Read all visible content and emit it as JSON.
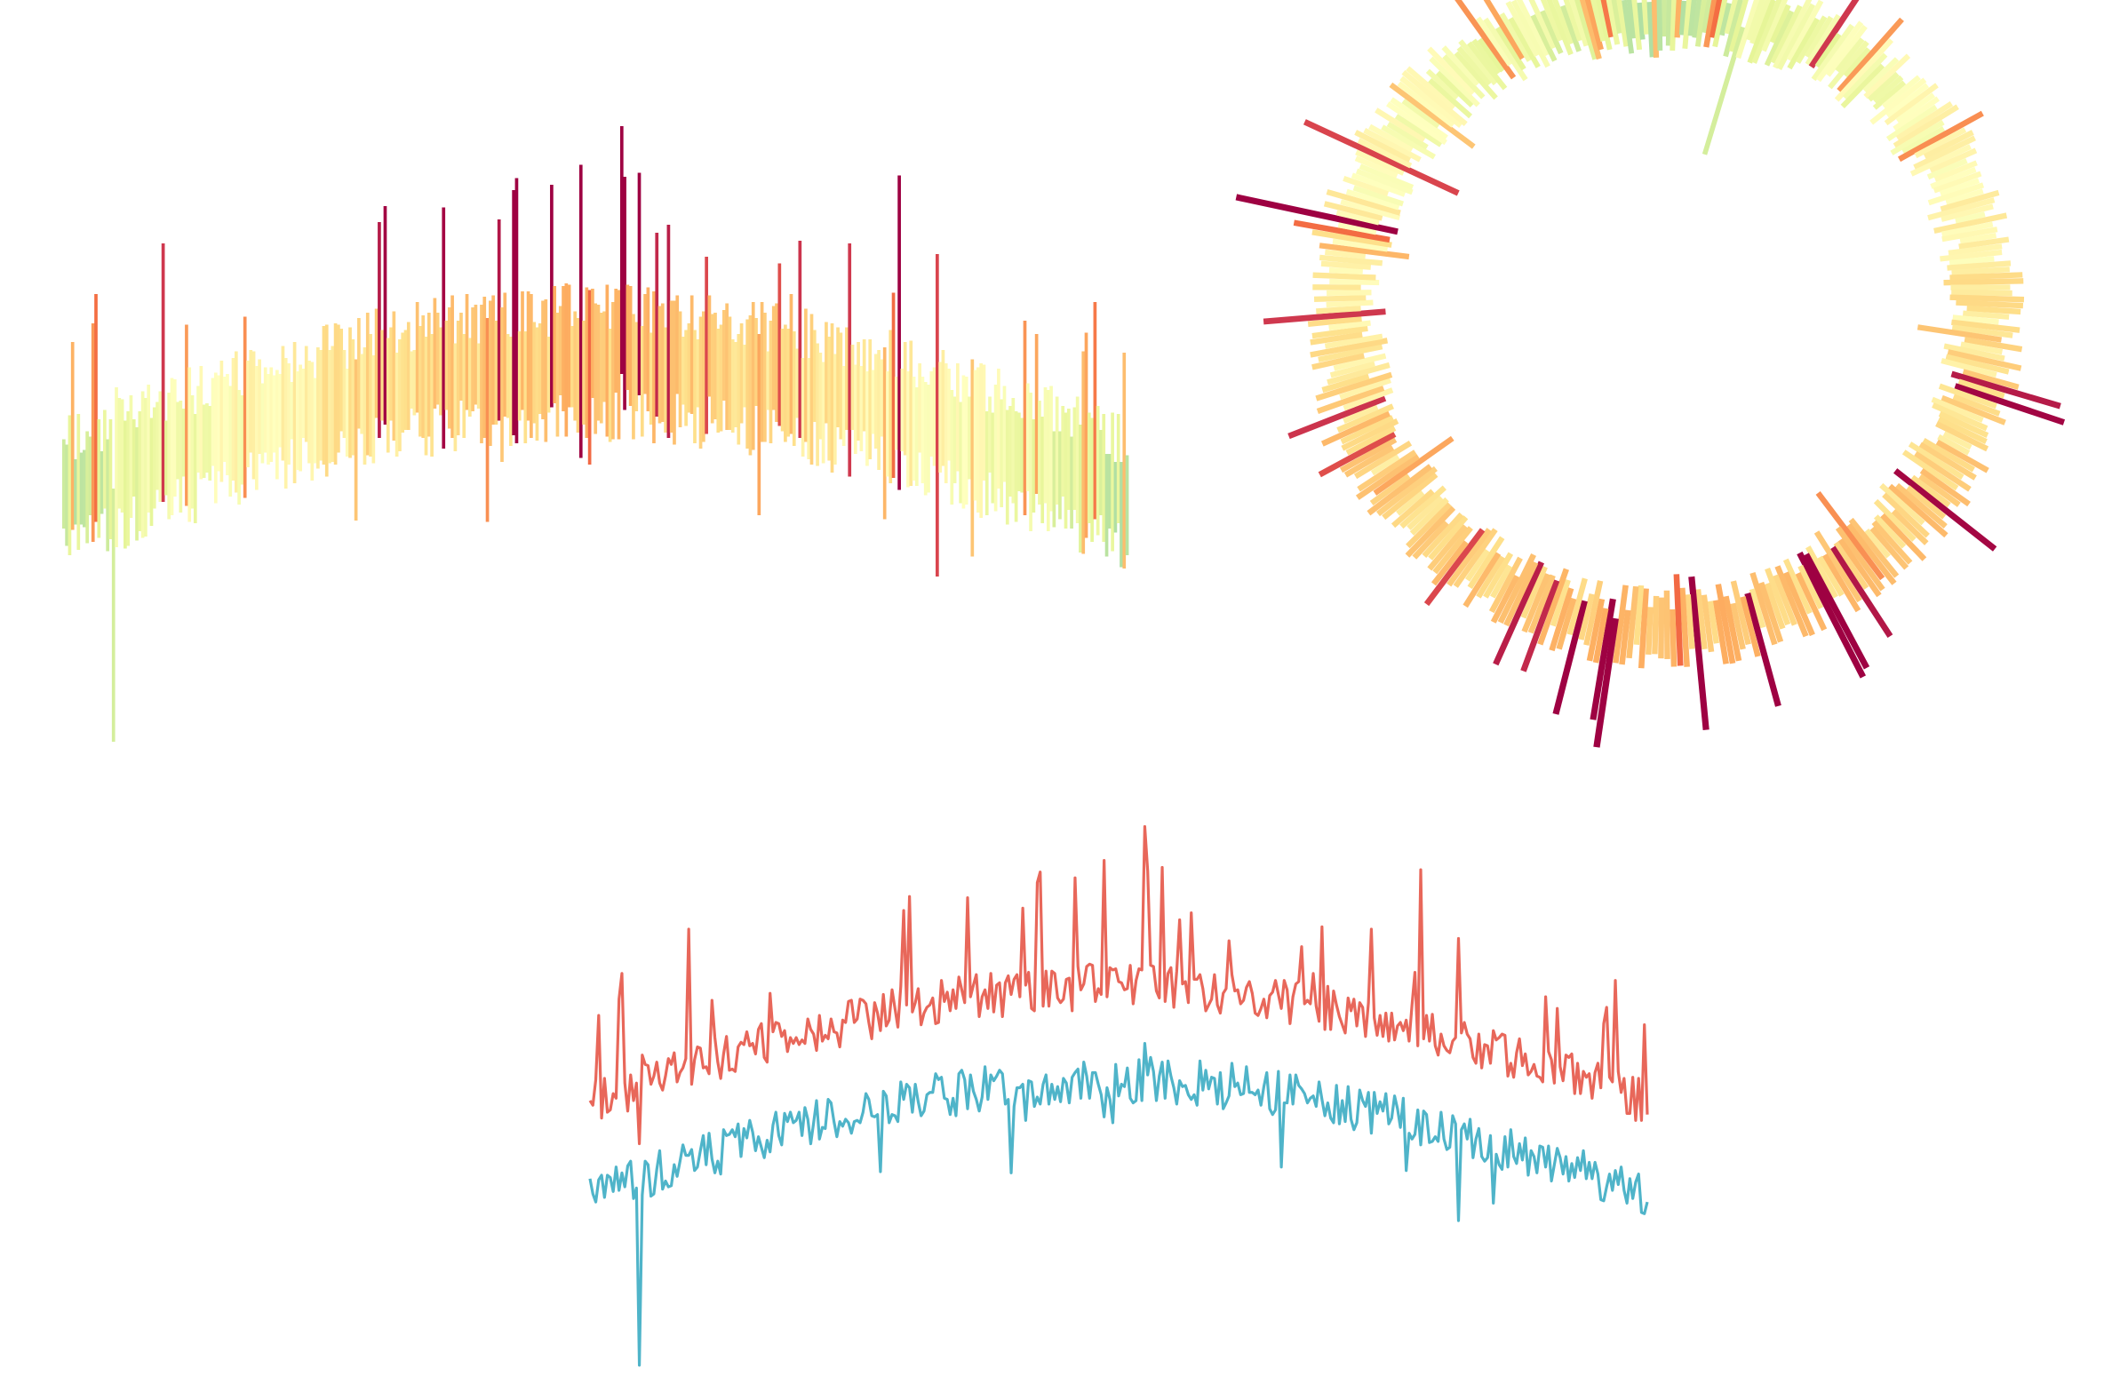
{
  "chart_data": [
    {
      "type": "bar",
      "variant": "floating-range",
      "color_scale": "spectral",
      "grid": false,
      "axes": false,
      "series": [
        {
          "name": "",
          "values": []
        },
        {
          "name": "",
          "values": []
        }
      ]
    },
    {
      "type": "bar",
      "variant": "radial-floating-range",
      "color_scale": "spectral",
      "grid": false,
      "axes": false,
      "series": [
        {
          "name": "",
          "values": []
        },
        {
          "name": "",
          "values": []
        }
      ]
    },
    {
      "type": "line",
      "grid": false,
      "axes": false,
      "colors": [
        "#e8675a",
        "#4fb4c9"
      ],
      "series": [
        {
          "name": "",
          "values": []
        },
        {
          "name": "",
          "values": []
        }
      ]
    }
  ]
}
